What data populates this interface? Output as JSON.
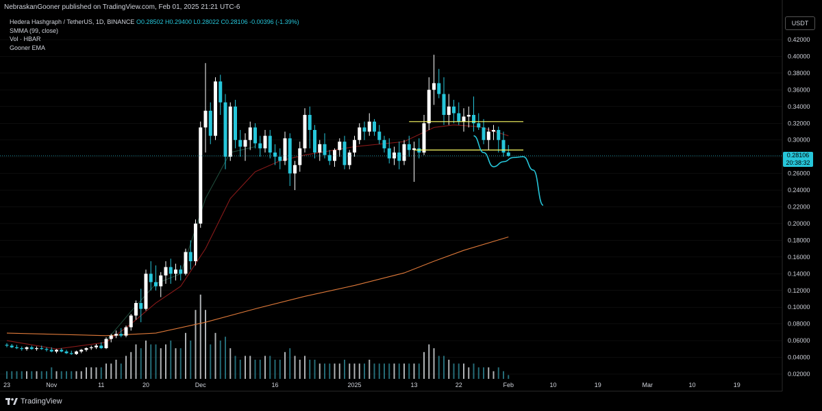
{
  "header": {
    "publisher": "NebraskanGooner published on TradingView.com, Feb 01, 2025 21:21 UTC-6"
  },
  "legend": {
    "symbol": "Hedera Hashgraph / TetherUS, 1D, BINANCE",
    "ohlc": "O0.28502  H0.29400  L0.28022  C0.28106  -0.00396 (-1.39%)",
    "indicators": [
      {
        "label": "SMMA (99, close)",
        "value": ""
      },
      {
        "label": "Vol · HBAR",
        "value": ""
      },
      {
        "label": "Gooner EMA",
        "value": ""
      }
    ]
  },
  "price_axis": {
    "currency": "USDT",
    "last_price": "0.28106",
    "countdown": "20:38:32"
  },
  "footer": {
    "brand": "TradingView"
  },
  "colors": {
    "background": "#000000",
    "up_candle": "#ffffff",
    "down_candle": "#26c6da",
    "smma_line": "#e07a3a",
    "ema_red": "#8b1a1a",
    "ema_green": "#1f4a3a",
    "horizontal_lines": "#ffff66",
    "projection": "#26c6da",
    "grid": "#1a1a1a"
  },
  "chart_data": {
    "type": "candlestick",
    "title": "",
    "ylim": [
      0.01,
      0.43
    ],
    "y_ticks": [
      0.42,
      0.4,
      0.38,
      0.36,
      0.34,
      0.32,
      0.3,
      0.28,
      0.26,
      0.24,
      0.22,
      0.2,
      0.18,
      0.16,
      0.14,
      0.12,
      0.1,
      0.08,
      0.06,
      0.04,
      0.02
    ],
    "x_ticks": [
      {
        "label": "23",
        "day": 0
      },
      {
        "label": "Nov",
        "day": 9
      },
      {
        "label": "11",
        "day": 19
      },
      {
        "label": "20",
        "day": 28
      },
      {
        "label": "Dec",
        "day": 39
      },
      {
        "label": "16",
        "day": 54
      },
      {
        "label": "2025",
        "day": 70
      },
      {
        "label": "13",
        "day": 82
      },
      {
        "label": "22",
        "day": 91
      },
      {
        "label": "Feb",
        "day": 101
      },
      {
        "label": "10",
        "day": 110
      },
      {
        "label": "19",
        "day": 119
      },
      {
        "label": "Mar",
        "day": 129
      },
      {
        "label": "10",
        "day": 138
      },
      {
        "label": "19",
        "day": 147
      }
    ],
    "candles": [
      [
        0.055,
        0.057,
        0.052,
        0.054
      ],
      [
        0.054,
        0.056,
        0.051,
        0.052
      ],
      [
        0.052,
        0.055,
        0.05,
        0.051
      ],
      [
        0.051,
        0.053,
        0.048,
        0.05
      ],
      [
        0.05,
        0.053,
        0.048,
        0.052
      ],
      [
        0.052,
        0.054,
        0.049,
        0.05
      ],
      [
        0.05,
        0.053,
        0.048,
        0.051
      ],
      [
        0.051,
        0.054,
        0.049,
        0.05
      ],
      [
        0.05,
        0.052,
        0.047,
        0.049
      ],
      [
        0.049,
        0.052,
        0.046,
        0.047
      ],
      [
        0.047,
        0.05,
        0.045,
        0.049
      ],
      [
        0.049,
        0.051,
        0.046,
        0.047
      ],
      [
        0.047,
        0.049,
        0.044,
        0.045
      ],
      [
        0.045,
        0.048,
        0.043,
        0.044
      ],
      [
        0.044,
        0.048,
        0.043,
        0.047
      ],
      [
        0.047,
        0.05,
        0.045,
        0.049
      ],
      [
        0.049,
        0.052,
        0.047,
        0.051
      ],
      [
        0.051,
        0.054,
        0.049,
        0.052
      ],
      [
        0.052,
        0.056,
        0.05,
        0.054
      ],
      [
        0.054,
        0.058,
        0.05,
        0.051
      ],
      [
        0.051,
        0.064,
        0.05,
        0.062
      ],
      [
        0.062,
        0.068,
        0.058,
        0.066
      ],
      [
        0.066,
        0.072,
        0.063,
        0.068
      ],
      [
        0.068,
        0.075,
        0.064,
        0.066
      ],
      [
        0.066,
        0.078,
        0.064,
        0.076
      ],
      [
        0.076,
        0.092,
        0.072,
        0.09
      ],
      [
        0.09,
        0.108,
        0.085,
        0.105
      ],
      [
        0.105,
        0.122,
        0.082,
        0.098
      ],
      [
        0.098,
        0.145,
        0.096,
        0.14
      ],
      [
        0.14,
        0.155,
        0.12,
        0.13
      ],
      [
        0.13,
        0.15,
        0.12,
        0.125
      ],
      [
        0.125,
        0.142,
        0.112,
        0.138
      ],
      [
        0.138,
        0.155,
        0.128,
        0.148
      ],
      [
        0.148,
        0.158,
        0.128,
        0.14
      ],
      [
        0.14,
        0.152,
        0.132,
        0.145
      ],
      [
        0.145,
        0.15,
        0.132,
        0.14
      ],
      [
        0.14,
        0.17,
        0.138,
        0.166
      ],
      [
        0.166,
        0.18,
        0.145,
        0.155
      ],
      [
        0.155,
        0.205,
        0.15,
        0.2
      ],
      [
        0.2,
        0.322,
        0.195,
        0.315
      ],
      [
        0.315,
        0.392,
        0.285,
        0.335
      ],
      [
        0.335,
        0.345,
        0.295,
        0.305
      ],
      [
        0.305,
        0.375,
        0.3,
        0.37
      ],
      [
        0.37,
        0.378,
        0.33,
        0.345
      ],
      [
        0.345,
        0.355,
        0.265,
        0.28
      ],
      [
        0.28,
        0.345,
        0.275,
        0.34
      ],
      [
        0.34,
        0.348,
        0.29,
        0.3
      ],
      [
        0.3,
        0.312,
        0.28,
        0.292
      ],
      [
        0.292,
        0.308,
        0.275,
        0.3
      ],
      [
        0.3,
        0.322,
        0.288,
        0.315
      ],
      [
        0.315,
        0.32,
        0.29,
        0.296
      ],
      [
        0.296,
        0.305,
        0.28,
        0.29
      ],
      [
        0.29,
        0.312,
        0.285,
        0.305
      ],
      [
        0.305,
        0.312,
        0.278,
        0.285
      ],
      [
        0.285,
        0.295,
        0.27,
        0.28
      ],
      [
        0.28,
        0.29,
        0.265,
        0.275
      ],
      [
        0.275,
        0.31,
        0.27,
        0.302
      ],
      [
        0.302,
        0.308,
        0.245,
        0.26
      ],
      [
        0.26,
        0.275,
        0.24,
        0.27
      ],
      [
        0.27,
        0.298,
        0.262,
        0.29
      ],
      [
        0.29,
        0.338,
        0.285,
        0.33
      ],
      [
        0.33,
        0.34,
        0.29,
        0.312
      ],
      [
        0.312,
        0.318,
        0.278,
        0.285
      ],
      [
        0.285,
        0.3,
        0.275,
        0.295
      ],
      [
        0.295,
        0.308,
        0.278,
        0.282
      ],
      [
        0.282,
        0.288,
        0.27,
        0.275
      ],
      [
        0.275,
        0.29,
        0.268,
        0.288
      ],
      [
        0.288,
        0.302,
        0.28,
        0.298
      ],
      [
        0.298,
        0.305,
        0.265,
        0.27
      ],
      [
        0.27,
        0.288,
        0.265,
        0.285
      ],
      [
        0.285,
        0.305,
        0.28,
        0.3
      ],
      [
        0.3,
        0.32,
        0.295,
        0.315
      ],
      [
        0.315,
        0.322,
        0.3,
        0.31
      ],
      [
        0.31,
        0.332,
        0.305,
        0.322
      ],
      [
        0.322,
        0.325,
        0.305,
        0.31
      ],
      [
        0.31,
        0.318,
        0.295,
        0.3
      ],
      [
        0.3,
        0.305,
        0.285,
        0.29
      ],
      [
        0.29,
        0.302,
        0.272,
        0.278
      ],
      [
        0.278,
        0.292,
        0.27,
        0.285
      ],
      [
        0.285,
        0.298,
        0.265,
        0.275
      ],
      [
        0.275,
        0.3,
        0.27,
        0.295
      ],
      [
        0.295,
        0.305,
        0.28,
        0.288
      ],
      [
        0.288,
        0.298,
        0.25,
        0.29
      ],
      [
        0.29,
        0.302,
        0.278,
        0.285
      ],
      [
        0.285,
        0.33,
        0.282,
        0.32
      ],
      [
        0.32,
        0.375,
        0.312,
        0.36
      ],
      [
        0.36,
        0.402,
        0.342,
        0.368
      ],
      [
        0.368,
        0.385,
        0.35,
        0.355
      ],
      [
        0.355,
        0.375,
        0.318,
        0.33
      ],
      [
        0.33,
        0.355,
        0.318,
        0.34
      ],
      [
        0.34,
        0.348,
        0.32,
        0.332
      ],
      [
        0.332,
        0.345,
        0.318,
        0.322
      ],
      [
        0.322,
        0.338,
        0.31,
        0.328
      ],
      [
        0.328,
        0.34,
        0.315,
        0.33
      ],
      [
        0.33,
        0.352,
        0.31,
        0.32
      ],
      [
        0.32,
        0.332,
        0.312,
        0.315
      ],
      [
        0.315,
        0.325,
        0.295,
        0.3
      ],
      [
        0.3,
        0.315,
        0.288,
        0.31
      ],
      [
        0.31,
        0.318,
        0.3,
        0.312
      ],
      [
        0.312,
        0.316,
        0.285,
        0.3
      ],
      [
        0.3,
        0.31,
        0.28,
        0.285
      ],
      [
        0.285,
        0.294,
        0.28,
        0.281
      ]
    ],
    "volume": [
      0.02,
      0.02,
      0.02,
      0.02,
      0.02,
      0.02,
      0.02,
      0.02,
      0.02,
      0.03,
      0.02,
      0.02,
      0.02,
      0.02,
      0.02,
      0.02,
      0.03,
      0.03,
      0.03,
      0.03,
      0.04,
      0.04,
      0.05,
      0.04,
      0.06,
      0.07,
      0.09,
      0.08,
      0.1,
      0.09,
      0.09,
      0.08,
      0.09,
      0.1,
      0.08,
      0.08,
      0.12,
      0.1,
      0.18,
      0.22,
      0.18,
      0.09,
      0.12,
      0.1,
      0.11,
      0.08,
      0.06,
      0.05,
      0.06,
      0.06,
      0.05,
      0.05,
      0.06,
      0.06,
      0.05,
      0.05,
      0.07,
      0.08,
      0.06,
      0.05,
      0.06,
      0.05,
      0.05,
      0.04,
      0.04,
      0.04,
      0.04,
      0.04,
      0.05,
      0.04,
      0.04,
      0.04,
      0.04,
      0.05,
      0.04,
      0.04,
      0.04,
      0.04,
      0.04,
      0.04,
      0.04,
      0.04,
      0.04,
      0.04,
      0.07,
      0.09,
      0.08,
      0.06,
      0.06,
      0.05,
      0.04,
      0.04,
      0.04,
      0.03,
      0.04,
      0.03,
      0.03,
      0.03,
      0.02,
      0.03,
      0.02,
      0.01
    ],
    "series": [
      {
        "name": "SMMA (99, close)",
        "color": "#e07a3a",
        "x": [
          0,
          20,
          30,
          40,
          50,
          60,
          70,
          80,
          86,
          92,
          101
        ],
        "y": [
          0.069,
          0.066,
          0.069,
          0.082,
          0.098,
          0.113,
          0.126,
          0.141,
          0.155,
          0.168,
          0.184
        ]
      },
      {
        "kind": "ema",
        "color": "#8b1a1a",
        "x": [
          0,
          10,
          20,
          25,
          30,
          35,
          40,
          45,
          50,
          55,
          60,
          70,
          80,
          86,
          90,
          95,
          101
        ],
        "y": [
          0.06,
          0.05,
          0.058,
          0.08,
          0.105,
          0.125,
          0.17,
          0.23,
          0.262,
          0.275,
          0.282,
          0.292,
          0.298,
          0.315,
          0.318,
          0.316,
          0.305
        ]
      },
      {
        "kind": "ema",
        "color": "#1f4a3a",
        "x": [
          20,
          25,
          30,
          35,
          40,
          45,
          50
        ],
        "y": [
          0.06,
          0.095,
          0.128,
          0.14,
          0.23,
          0.285,
          0.292
        ]
      }
    ],
    "horizontal_levels": [
      {
        "price": 0.322,
        "from_day": 81,
        "to_day": 104
      },
      {
        "price": 0.288,
        "from_day": 82,
        "to_day": 104
      }
    ],
    "projection": {
      "x": [
        94,
        96,
        98,
        100,
        102,
        104,
        106,
        108
      ],
      "y": [
        0.305,
        0.285,
        0.268,
        0.274,
        0.279,
        0.28,
        0.264,
        0.222
      ]
    },
    "last_price": 0.28106
  }
}
